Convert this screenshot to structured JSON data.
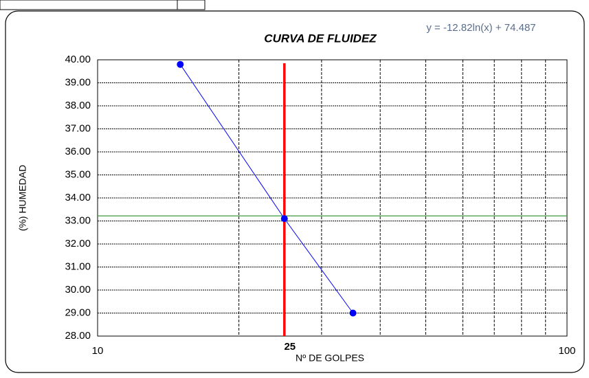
{
  "chart_data": {
    "type": "line",
    "title": "CURVA DE FLUIDEZ",
    "equation": "y = -12.82ln(x) + 74.487",
    "x_label": "Nº DE GOLPES",
    "y_label": "(%) HUMEDAD",
    "x": [
      15,
      25,
      35
    ],
    "series": [
      {
        "name": "HUMEDAD",
        "color": "#0000ff",
        "values": [
          39.8,
          33.1,
          29.0
        ]
      }
    ],
    "xlog": true,
    "xlim": [
      10,
      100
    ],
    "xticks": [
      10,
      100
    ],
    "xminor": [
      20,
      30,
      40,
      50,
      60,
      70,
      80,
      90
    ],
    "ylim": [
      28,
      40
    ],
    "yticks": [
      {
        "value": 28,
        "label": "28.00"
      },
      {
        "value": 29,
        "label": "29.00"
      },
      {
        "value": 30,
        "label": "30.00"
      },
      {
        "value": 31,
        "label": "31.00"
      },
      {
        "value": 32,
        "label": "32.00"
      },
      {
        "value": 33,
        "label": "33.00"
      },
      {
        "value": 34,
        "label": "34.00"
      },
      {
        "value": 35,
        "label": "35.00"
      },
      {
        "value": 36,
        "label": "36.00"
      },
      {
        "value": 37,
        "label": "37.00"
      },
      {
        "value": 38,
        "label": "38.00"
      },
      {
        "value": 39,
        "label": "39.00"
      },
      {
        "value": 40,
        "label": "40.00"
      }
    ],
    "grid": true,
    "vline": {
      "x": 25,
      "ymax": 39.85,
      "color": "#ff0000"
    },
    "hline": {
      "y": 33.22,
      "color": "#3c9a3c"
    }
  }
}
